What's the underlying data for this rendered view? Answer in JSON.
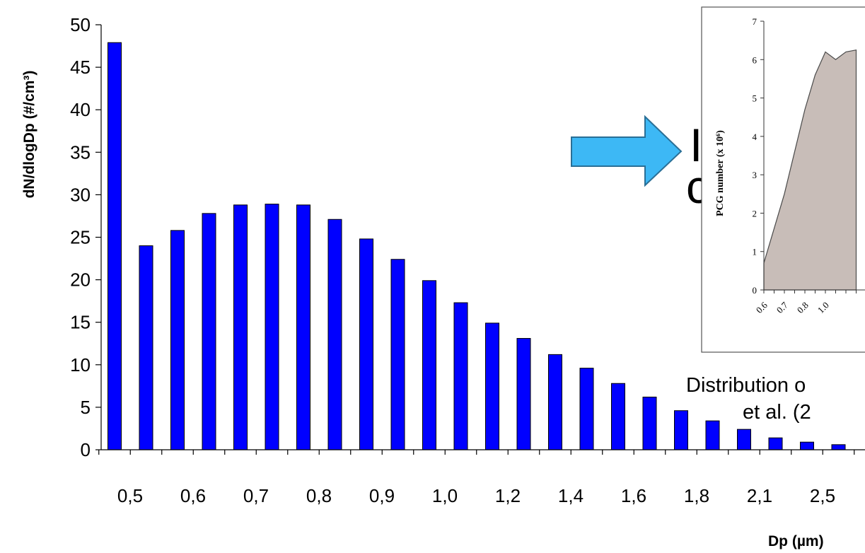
{
  "chart_data": [
    {
      "type": "bar",
      "title": "",
      "xlabel": "Dp (µm)",
      "ylabel": "dN/dlogDp (#/cm³)",
      "ylim": [
        0,
        50
      ],
      "yticks": [
        0,
        5,
        10,
        15,
        20,
        25,
        30,
        35,
        40,
        45,
        50
      ],
      "x_tick_labels": [
        "0,5",
        "0,6",
        "0,7",
        "0,8",
        "0,9",
        "1,0",
        "1,2",
        "1,4",
        "1,6",
        "1,8",
        "2,1",
        "2,5"
      ],
      "values": [
        47.9,
        24.0,
        25.8,
        27.8,
        28.8,
        28.9,
        28.8,
        27.1,
        24.8,
        22.4,
        19.9,
        17.3,
        14.9,
        13.1,
        11.2,
        9.6,
        7.8,
        6.2,
        4.6,
        3.4,
        2.4,
        1.4,
        0.9,
        0.6
      ],
      "bar_color": "#0000ff",
      "grid": false
    },
    {
      "type": "area",
      "ylabel": "PCG number (x 10⁶)",
      "ylim": [
        0,
        7
      ],
      "yticks": [
        0,
        1,
        2,
        3,
        4,
        5,
        6,
        7
      ],
      "x_tick_labels": [
        "0.6",
        "0.7",
        "0.8",
        "1.0"
      ],
      "x": [
        0.6,
        0.65,
        0.7,
        0.75,
        0.8,
        0.85,
        0.9,
        0.95,
        1.0,
        1.05
      ],
      "values": [
        0.7,
        1.6,
        2.5,
        3.6,
        4.7,
        5.6,
        6.2,
        6.0,
        6.2,
        6.25
      ],
      "fill_color": "#c8bdb8",
      "grid": false
    }
  ],
  "annotations": {
    "caption_line1": "Distribution o",
    "caption_line2": "et al. (2",
    "partial_glyph": "I",
    "partial_glyph2": "c",
    "arrow_color": "#3db8f5"
  }
}
